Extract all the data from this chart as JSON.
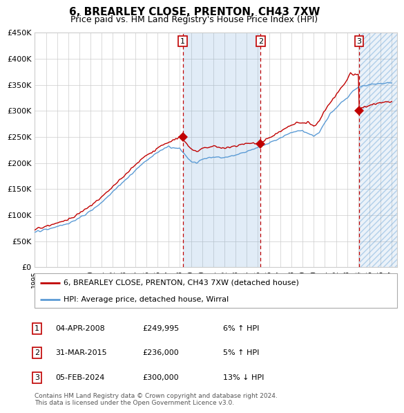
{
  "title": "6, BREARLEY CLOSE, PRENTON, CH43 7XW",
  "subtitle": "Price paid vs. HM Land Registry's House Price Index (HPI)",
  "ylim": [
    0,
    450000
  ],
  "xlim_start": 1995.0,
  "xlim_end": 2027.5,
  "yticks": [
    0,
    50000,
    100000,
    150000,
    200000,
    250000,
    300000,
    350000,
    400000,
    450000
  ],
  "ytick_labels": [
    "£0",
    "£50K",
    "£100K",
    "£150K",
    "£200K",
    "£250K",
    "£300K",
    "£350K",
    "£400K",
    "£450K"
  ],
  "xticks": [
    1995,
    1996,
    1997,
    1998,
    1999,
    2000,
    2001,
    2002,
    2003,
    2004,
    2005,
    2006,
    2007,
    2008,
    2009,
    2010,
    2011,
    2012,
    2013,
    2014,
    2015,
    2016,
    2017,
    2018,
    2019,
    2020,
    2021,
    2022,
    2023,
    2024,
    2025,
    2026,
    2027
  ],
  "hpi_color": "#5b9bd5",
  "price_color": "#c00000",
  "background_color": "#ffffff",
  "grid_color": "#cccccc",
  "sale1_year": 2008.27,
  "sale1_price": 249995,
  "sale2_year": 2015.25,
  "sale2_price": 236000,
  "sale3_year": 2024.08,
  "sale3_price": 300000,
  "shade_start": 2008.27,
  "shade_end": 2015.25,
  "hatch_start": 2024.08,
  "hatch_end": 2027.5,
  "legend_line1": "6, BREARLEY CLOSE, PRENTON, CH43 7XW (detached house)",
  "legend_line2": "HPI: Average price, detached house, Wirral",
  "table_rows": [
    [
      "1",
      "04-APR-2008",
      "£249,995",
      "6% ↑ HPI"
    ],
    [
      "2",
      "31-MAR-2015",
      "£236,000",
      "5% ↑ HPI"
    ],
    [
      "3",
      "05-FEB-2024",
      "£300,000",
      "13% ↓ HPI"
    ]
  ],
  "footnote1": "Contains HM Land Registry data © Crown copyright and database right 2024.",
  "footnote2": "This data is licensed under the Open Government Licence v3.0.",
  "hpi_keypoints_x": [
    1995,
    1996,
    1997,
    1998,
    1999,
    2000,
    2001,
    2002,
    2003,
    2004,
    2005,
    2006,
    2007,
    2008,
    2008.5,
    2009,
    2009.5,
    2010,
    2011,
    2012,
    2013,
    2014,
    2015,
    2016,
    2017,
    2018,
    2019,
    2020,
    2020.5,
    2021,
    2021.5,
    2022,
    2022.5,
    2023,
    2023.5,
    2024,
    2024.5,
    2025,
    2026,
    2027
  ],
  "hpi_keypoints_y": [
    68000,
    72000,
    78000,
    84000,
    95000,
    108000,
    125000,
    145000,
    165000,
    185000,
    205000,
    220000,
    232000,
    228000,
    215000,
    203000,
    200000,
    208000,
    212000,
    210000,
    215000,
    222000,
    230000,
    238000,
    248000,
    258000,
    262000,
    252000,
    258000,
    278000,
    295000,
    305000,
    318000,
    325000,
    338000,
    345000,
    348000,
    350000,
    352000,
    354000
  ],
  "red_keypoints_x": [
    1995,
    1996,
    1997,
    1998,
    1999,
    2000,
    2001,
    2002,
    2003,
    2004,
    2005,
    2006,
    2007,
    2008,
    2008.5,
    2009,
    2009.5,
    2010,
    2011,
    2012,
    2013,
    2014,
    2015,
    2016,
    2017,
    2017.5,
    2018,
    2018.5,
    2019,
    2019.5,
    2020,
    2020.5,
    2021,
    2021.5,
    2022,
    2022.5,
    2023,
    2023.3,
    2023.6,
    2024,
    2024.08,
    2024.3,
    2025,
    2026,
    2027
  ],
  "red_keypoints_y": [
    73000,
    78000,
    84000,
    92000,
    103000,
    118000,
    135000,
    155000,
    175000,
    196000,
    215000,
    228000,
    240000,
    250000,
    240000,
    228000,
    222000,
    228000,
    232000,
    228000,
    232000,
    238000,
    236000,
    248000,
    260000,
    268000,
    272000,
    278000,
    276000,
    278000,
    270000,
    282000,
    300000,
    315000,
    330000,
    345000,
    360000,
    375000,
    368000,
    370000,
    300000,
    305000,
    310000,
    315000,
    318000
  ]
}
